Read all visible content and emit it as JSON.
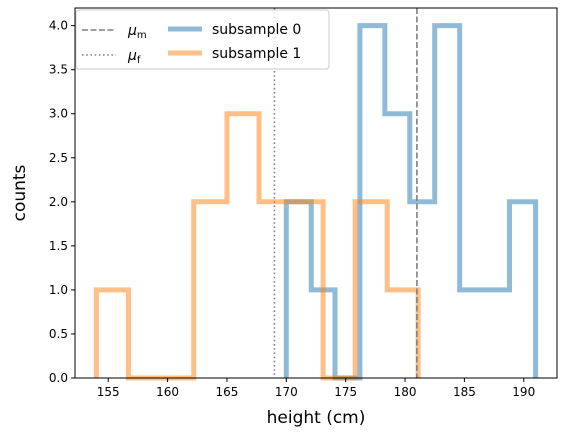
{
  "chart_data": {
    "type": "histogram",
    "xlabel": "height (cm)",
    "ylabel": "counts",
    "xlim": [
      152.2,
      192.8
    ],
    "ylim": [
      0.0,
      4.2
    ],
    "xticks": [
      155,
      160,
      165,
      170,
      175,
      180,
      185,
      190
    ],
    "yticks": [
      0.0,
      0.5,
      1.0,
      1.5,
      2.0,
      2.5,
      3.0,
      3.5,
      4.0
    ],
    "grid": false,
    "legend": {
      "placement": "upper-left",
      "entries": [
        {
          "label": "μm",
          "label_main": "μ",
          "label_sub": "m",
          "style": "dashed",
          "color": "#808080"
        },
        {
          "label": "μf",
          "label_main": "μ",
          "label_sub": "f",
          "style": "dotted",
          "color": "#808080"
        },
        {
          "label": "subsample 0",
          "style": "thick-line",
          "color": "#1f77b4"
        },
        {
          "label": "subsample 1",
          "style": "thick-line",
          "color": "#ff7f0e"
        }
      ]
    },
    "vlines": [
      {
        "name": "μm",
        "x": 181.0,
        "style": "dashed",
        "color": "#808080"
      },
      {
        "name": "μf",
        "x": 169.0,
        "style": "dotted",
        "color": "#808080"
      }
    ],
    "series": [
      {
        "name": "subsample 0",
        "color": "#1f77b4",
        "alpha": 0.5,
        "bin_edges": [
          170.0,
          172.1,
          174.1,
          176.2,
          178.3,
          180.4,
          182.5,
          184.6,
          186.7,
          188.8,
          191.0
        ],
        "counts": [
          2,
          1,
          0,
          4,
          3,
          2,
          4,
          1,
          1,
          2
        ]
      },
      {
        "name": "subsample 1",
        "color": "#ff7f0e",
        "alpha": 0.5,
        "bin_edges": [
          154.0,
          156.7,
          159.5,
          162.2,
          165.0,
          167.7,
          170.4,
          173.1,
          175.8,
          178.5,
          181.1
        ],
        "counts": [
          1,
          0,
          0,
          2,
          3,
          2,
          2,
          0,
          2,
          1
        ]
      }
    ]
  }
}
